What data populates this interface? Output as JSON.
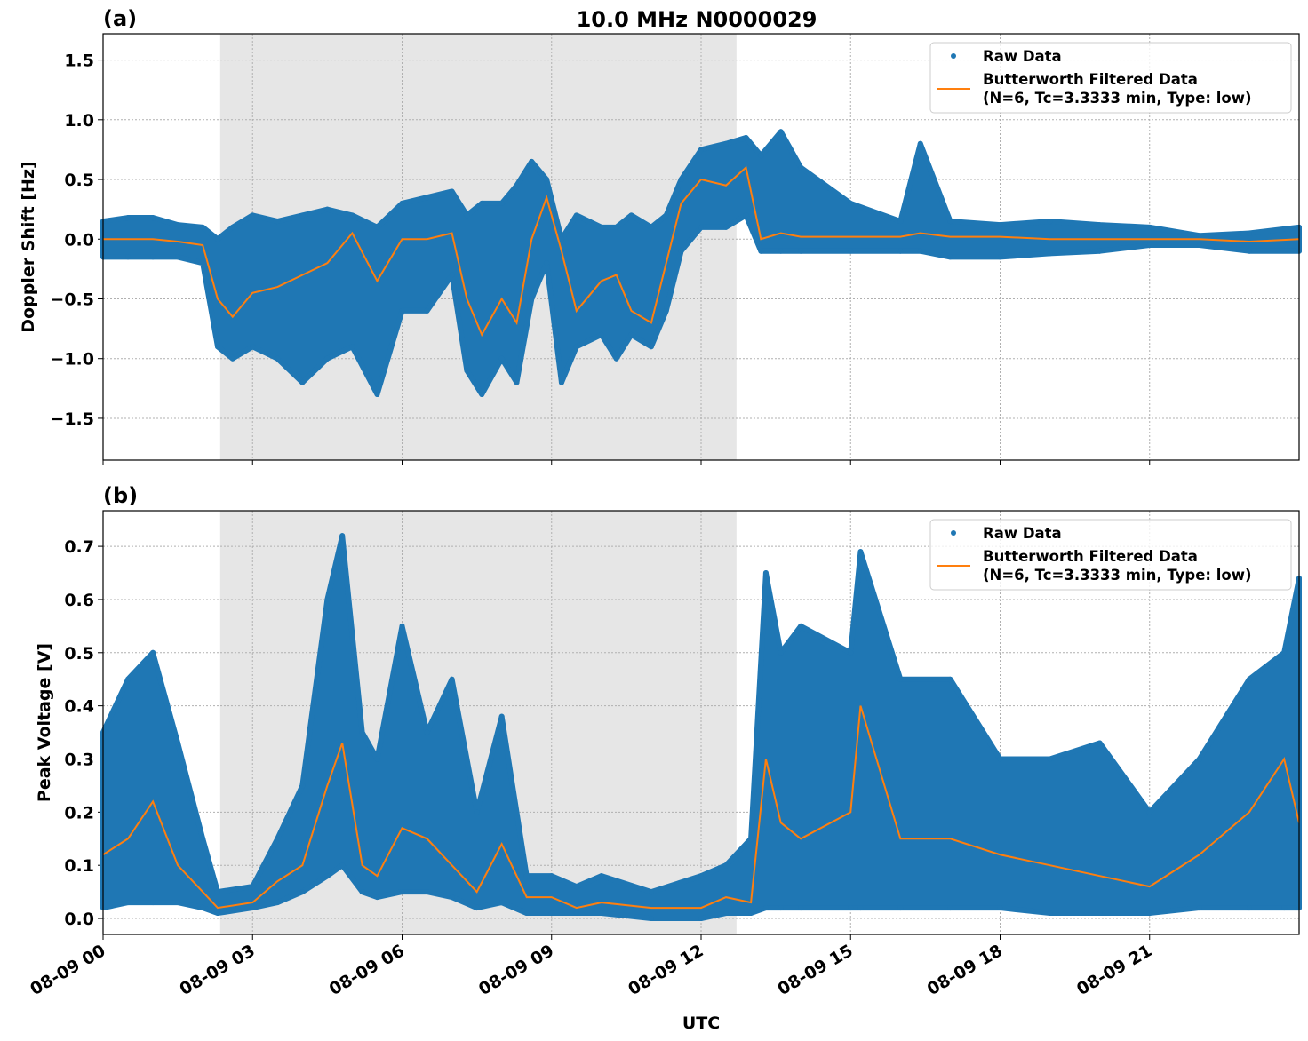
{
  "chart_data": [
    {
      "type": "scatter",
      "panel_label": "(a)",
      "title": "10.0 MHz N0000029",
      "xlabel": "",
      "ylabel": "Doppler Shift [Hz]",
      "xlim_hours_utc": [
        0,
        24
      ],
      "ylim": [
        -1.85,
        1.72
      ],
      "yticks": [
        "1.5",
        "1.0",
        "0.5",
        "0.0",
        "−0.5",
        "−1.0",
        "−1.5"
      ],
      "ytick_values": [
        1.5,
        1.0,
        0.5,
        0.0,
        -0.5,
        -1.0,
        -1.5
      ],
      "shaded_interval_hours": [
        2.35,
        12.71
      ],
      "grid": true,
      "legend_position": "top-right",
      "legend": [
        "Raw Data",
        "Butterworth Filtered Data",
        "(N=6, Tc=3.3333 min, Type: low)"
      ],
      "colors": {
        "raw": "#1f77b4",
        "filtered": "#ff7f0e",
        "shade": "#e6e6e6"
      },
      "series": [
        {
          "name": "Raw Data",
          "kind": "envelope",
          "t": [
            0,
            0.5,
            1,
            1.5,
            2,
            2.3,
            2.6,
            3,
            3.5,
            4,
            4.5,
            5,
            5.5,
            6,
            6.5,
            7,
            7.3,
            7.6,
            8,
            8.3,
            8.6,
            8.9,
            9.2,
            9.5,
            10,
            10.3,
            10.6,
            11,
            11.3,
            11.6,
            12,
            12.5,
            12.9,
            13.2,
            13.6,
            14,
            15,
            16,
            16.4,
            17,
            18,
            19,
            20,
            21,
            22,
            23,
            24
          ],
          "lo": [
            -0.15,
            -0.15,
            -0.15,
            -0.15,
            -0.2,
            -0.9,
            -1.0,
            -0.9,
            -1.0,
            -1.2,
            -1.0,
            -0.9,
            -1.3,
            -0.6,
            -0.6,
            -0.3,
            -1.1,
            -1.3,
            -1.0,
            -1.2,
            -0.5,
            -0.2,
            -1.2,
            -0.9,
            -0.8,
            -1.0,
            -0.8,
            -0.9,
            -0.6,
            -0.1,
            0.1,
            0.1,
            0.2,
            -0.1,
            -0.1,
            -0.1,
            -0.1,
            -0.1,
            -0.1,
            -0.15,
            -0.15,
            -0.12,
            -0.1,
            -0.05,
            -0.05,
            -0.1,
            -0.1
          ],
          "hi": [
            0.15,
            0.18,
            0.18,
            0.12,
            0.1,
            0.0,
            0.1,
            0.2,
            0.15,
            0.2,
            0.25,
            0.2,
            0.1,
            0.3,
            0.35,
            0.4,
            0.2,
            0.3,
            0.3,
            0.45,
            0.65,
            0.5,
            0.0,
            0.2,
            0.1,
            0.1,
            0.2,
            0.1,
            0.2,
            0.5,
            0.75,
            0.8,
            0.85,
            0.7,
            0.9,
            0.6,
            0.3,
            0.15,
            0.8,
            0.15,
            0.12,
            0.15,
            0.12,
            0.1,
            0.03,
            0.05,
            0.1
          ]
        },
        {
          "name": "Butterworth Filtered Data",
          "kind": "line",
          "t": [
            0,
            0.5,
            1,
            1.5,
            2,
            2.3,
            2.6,
            3,
            3.5,
            4,
            4.5,
            5,
            5.5,
            6,
            6.5,
            7,
            7.3,
            7.6,
            8,
            8.3,
            8.6,
            8.9,
            9.2,
            9.5,
            10,
            10.3,
            10.6,
            11,
            11.3,
            11.6,
            12,
            12.5,
            12.9,
            13.2,
            13.6,
            14,
            15,
            16,
            16.4,
            17,
            18,
            19,
            20,
            21,
            22,
            23,
            24
          ],
          "y": [
            0,
            0,
            0,
            -0.02,
            -0.05,
            -0.5,
            -0.65,
            -0.45,
            -0.4,
            -0.3,
            -0.2,
            0.05,
            -0.35,
            0.0,
            0.0,
            0.05,
            -0.5,
            -0.8,
            -0.5,
            -0.7,
            0.0,
            0.35,
            -0.1,
            -0.6,
            -0.35,
            -0.3,
            -0.6,
            -0.7,
            -0.2,
            0.3,
            0.5,
            0.45,
            0.6,
            0.0,
            0.05,
            0.02,
            0.02,
            0.02,
            0.05,
            0.02,
            0.02,
            0.0,
            0.0,
            0.0,
            0.0,
            -0.02,
            0.0
          ]
        }
      ]
    },
    {
      "type": "scatter",
      "panel_label": "(b)",
      "xlabel": "UTC",
      "ylabel": "Peak Voltage [V]",
      "xlim_hours_utc": [
        0,
        24
      ],
      "ylim": [
        -0.03,
        0.767
      ],
      "yticks": [
        "0.7",
        "0.6",
        "0.5",
        "0.4",
        "0.3",
        "0.2",
        "0.1",
        "0.0"
      ],
      "ytick_values": [
        0.7,
        0.6,
        0.5,
        0.4,
        0.3,
        0.2,
        0.1,
        0.0
      ],
      "xticks": [
        "08-09 00",
        "08-09 03",
        "08-09 06",
        "08-09 09",
        "08-09 12",
        "08-09 15",
        "08-09 18",
        "08-09 21"
      ],
      "xtick_hours": [
        0,
        3,
        6,
        9,
        12,
        15,
        18,
        21
      ],
      "shaded_interval_hours": [
        2.35,
        12.71
      ],
      "grid": true,
      "legend_position": "top-right",
      "legend": [
        "Raw Data",
        "Butterworth Filtered Data",
        "(N=6, Tc=3.3333 min, Type: low)"
      ],
      "series": [
        {
          "name": "Raw Data",
          "kind": "envelope",
          "t": [
            0,
            0.5,
            1,
            1.5,
            2,
            2.3,
            3,
            3.5,
            4,
            4.5,
            4.8,
            5.2,
            5.5,
            6,
            6.5,
            7,
            7.5,
            8,
            8.5,
            9,
            9.5,
            10,
            11,
            12,
            12.5,
            13,
            13.3,
            13.6,
            14,
            15,
            15.2,
            16,
            17,
            18,
            19,
            20,
            21,
            22,
            23,
            23.7,
            24
          ],
          "lo": [
            0.02,
            0.03,
            0.03,
            0.03,
            0.02,
            0.01,
            0.02,
            0.03,
            0.05,
            0.08,
            0.1,
            0.05,
            0.04,
            0.05,
            0.05,
            0.04,
            0.02,
            0.03,
            0.01,
            0.01,
            0.01,
            0.01,
            0.0,
            0.0,
            0.01,
            0.01,
            0.02,
            0.02,
            0.02,
            0.02,
            0.02,
            0.02,
            0.02,
            0.02,
            0.01,
            0.01,
            0.01,
            0.02,
            0.02,
            0.02,
            0.02
          ],
          "hi": [
            0.35,
            0.45,
            0.5,
            0.33,
            0.15,
            0.05,
            0.06,
            0.15,
            0.25,
            0.6,
            0.72,
            0.35,
            0.3,
            0.55,
            0.35,
            0.45,
            0.2,
            0.38,
            0.08,
            0.08,
            0.06,
            0.08,
            0.05,
            0.08,
            0.1,
            0.15,
            0.65,
            0.5,
            0.55,
            0.5,
            0.69,
            0.45,
            0.45,
            0.3,
            0.3,
            0.33,
            0.2,
            0.3,
            0.45,
            0.5,
            0.64
          ]
        },
        {
          "name": "Butterworth Filtered Data",
          "kind": "line",
          "t": [
            0,
            0.5,
            1,
            1.5,
            2,
            2.3,
            3,
            3.5,
            4,
            4.5,
            4.8,
            5.2,
            5.5,
            6,
            6.5,
            7,
            7.5,
            8,
            8.5,
            9,
            9.5,
            10,
            11,
            12,
            12.5,
            13,
            13.3,
            13.6,
            14,
            15,
            15.2,
            16,
            17,
            18,
            19,
            20,
            21,
            22,
            23,
            23.7,
            24
          ],
          "y": [
            0.12,
            0.15,
            0.22,
            0.1,
            0.05,
            0.02,
            0.03,
            0.07,
            0.1,
            0.25,
            0.33,
            0.1,
            0.08,
            0.17,
            0.15,
            0.1,
            0.05,
            0.14,
            0.04,
            0.04,
            0.02,
            0.03,
            0.02,
            0.02,
            0.04,
            0.03,
            0.3,
            0.18,
            0.15,
            0.2,
            0.4,
            0.15,
            0.15,
            0.12,
            0.1,
            0.08,
            0.06,
            0.12,
            0.2,
            0.3,
            0.18
          ]
        }
      ]
    }
  ]
}
